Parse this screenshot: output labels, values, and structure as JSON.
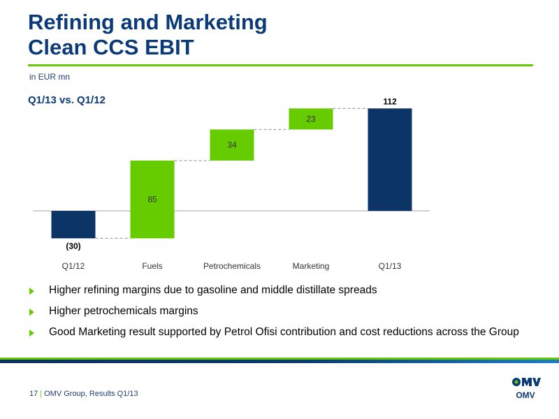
{
  "title": {
    "line1": "Refining and Marketing",
    "line2": "Clean CCS EBIT"
  },
  "unit_label": "in EUR mn",
  "subtitle": "Q1/13 vs. Q1/12",
  "colors": {
    "title_blue": "#0b3a78",
    "accent_green": "#66cc00",
    "bar_blue": "#0c3466",
    "bar_green": "#66cc00"
  },
  "chart_data": {
    "type": "bar",
    "subtype": "waterfall",
    "categories": [
      "Q1/12",
      "Fuels",
      "Petrochemicals",
      "Marketing",
      "Q1/13"
    ],
    "values": [
      -30,
      85,
      34,
      23,
      112
    ],
    "kinds": [
      "total",
      "delta",
      "delta",
      "delta",
      "total"
    ],
    "data_labels": [
      "(30)",
      "85",
      "34",
      "23",
      "112"
    ],
    "title": "Q1/13 vs. Q1/12",
    "xlabel": "",
    "ylabel": "in EUR mn",
    "grid": false,
    "connectors": "dashed"
  },
  "bullets": [
    "Higher refining margins due to gasoline and middle distillate spreads",
    "Higher petrochemicals margins",
    "Good Marketing result supported by Petrol Ofisi contribution and cost reductions across the Group"
  ],
  "footer": {
    "page_number": "17",
    "separator": "|",
    "text": "OMV Group, Results Q1/13"
  },
  "logo": {
    "text": "OMV",
    "icon": "omv-logo-icon"
  }
}
